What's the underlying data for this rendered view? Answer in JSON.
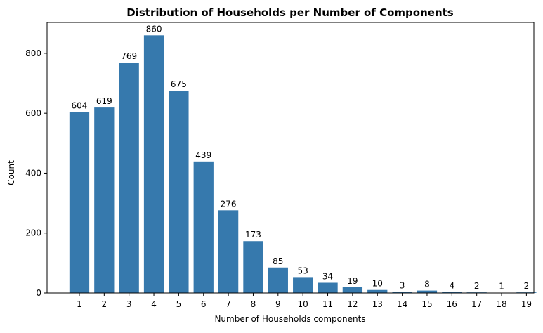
{
  "chart_data": {
    "type": "bar",
    "title": "Distribution of Households per Number of Components",
    "xlabel": "Number of Households components",
    "ylabel": "Count",
    "categories": [
      "1",
      "2",
      "3",
      "4",
      "5",
      "6",
      "7",
      "8",
      "9",
      "10",
      "11",
      "12",
      "13",
      "14",
      "15",
      "16",
      "17",
      "18",
      "19"
    ],
    "values": [
      604,
      619,
      769,
      860,
      675,
      439,
      276,
      173,
      85,
      53,
      34,
      19,
      10,
      3,
      8,
      4,
      2,
      1,
      2
    ],
    "ylim": [
      0,
      903
    ],
    "yticks": [
      0,
      200,
      400,
      600,
      800
    ],
    "bar_color": "#3679ad",
    "grid": false,
    "legend": "none",
    "data_labels": true
  }
}
